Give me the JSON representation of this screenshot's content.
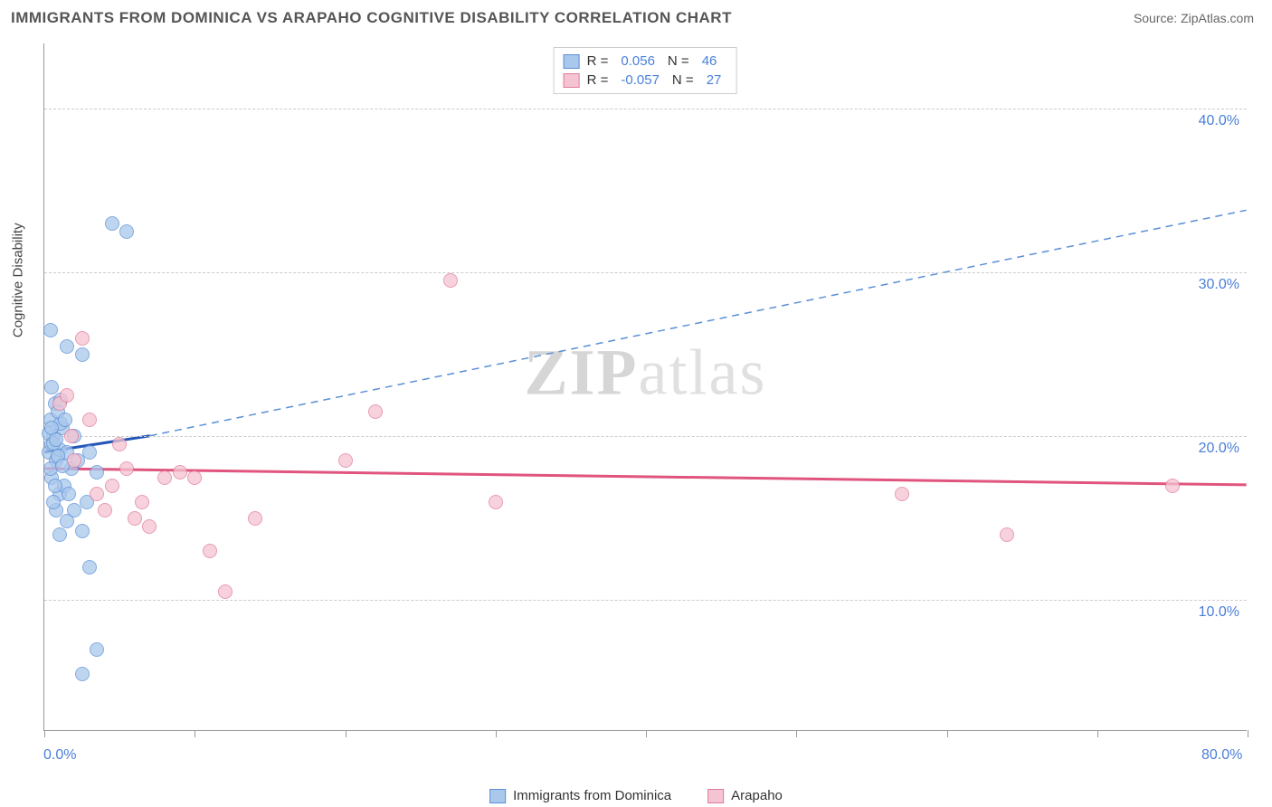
{
  "header": {
    "title": "IMMIGRANTS FROM DOMINICA VS ARAPAHO COGNITIVE DISABILITY CORRELATION CHART",
    "source": "Source: ZipAtlas.com"
  },
  "watermark": {
    "bold": "ZIP",
    "rest": "atlas"
  },
  "chart": {
    "type": "scatter",
    "y_axis_title": "Cognitive Disability",
    "background_color": "#ffffff",
    "grid_color": "#cccccc",
    "axis_color": "#999999",
    "tick_label_color": "#4a7fd8",
    "xlim": [
      0,
      80
    ],
    "ylim": [
      2,
      44
    ],
    "x_ticks": [
      0,
      10,
      20,
      30,
      40,
      50,
      60,
      70,
      80
    ],
    "x_tick_labels": {
      "first": "0.0%",
      "last": "80.0%"
    },
    "y_grid": [
      10,
      20,
      30,
      40
    ],
    "y_tick_labels": [
      "10.0%",
      "20.0%",
      "30.0%",
      "40.0%"
    ],
    "marker_radius": 8,
    "marker_border_width": 1.2,
    "series": [
      {
        "name": "Immigrants from Dominica",
        "fill_color": "#a9c8ec",
        "stroke_color": "#5b8fd6",
        "trend_solid_color": "#2456b8",
        "trend_dash_color": "#5b8fd6",
        "R": "0.056",
        "N": "46",
        "trend": {
          "x1": 0,
          "y1": 19.0,
          "x2": 7,
          "y2": 20.0,
          "x3": 80,
          "y3": 33.8
        },
        "points": [
          [
            0.3,
            19.0
          ],
          [
            0.5,
            19.5
          ],
          [
            0.6,
            20.0
          ],
          [
            0.8,
            18.5
          ],
          [
            1.0,
            19.2
          ],
          [
            1.2,
            20.5
          ],
          [
            0.4,
            21.0
          ],
          [
            0.7,
            22.0
          ],
          [
            1.5,
            19.0
          ],
          [
            1.8,
            18.0
          ],
          [
            0.5,
            17.5
          ],
          [
            1.0,
            16.5
          ],
          [
            0.8,
            15.5
          ],
          [
            0.6,
            16.0
          ],
          [
            1.3,
            17.0
          ],
          [
            0.9,
            18.8
          ],
          [
            1.1,
            20.8
          ],
          [
            0.5,
            23.0
          ],
          [
            1.5,
            25.5
          ],
          [
            2.5,
            25.0
          ],
          [
            0.4,
            26.5
          ],
          [
            2.0,
            20.0
          ],
          [
            3.0,
            19.0
          ],
          [
            3.5,
            17.8
          ],
          [
            2.8,
            16.0
          ],
          [
            2.0,
            15.5
          ],
          [
            1.5,
            14.8
          ],
          [
            1.0,
            14.0
          ],
          [
            2.5,
            14.2
          ],
          [
            4.5,
            33.0
          ],
          [
            5.5,
            32.5
          ],
          [
            3.0,
            12.0
          ],
          [
            3.5,
            7.0
          ],
          [
            2.5,
            5.5
          ],
          [
            0.3,
            20.2
          ],
          [
            0.6,
            19.6
          ],
          [
            0.9,
            21.5
          ],
          [
            1.1,
            22.2
          ],
          [
            0.4,
            18.0
          ],
          [
            0.7,
            17.0
          ],
          [
            1.4,
            21.0
          ],
          [
            2.2,
            18.5
          ],
          [
            0.5,
            20.5
          ],
          [
            0.8,
            19.8
          ],
          [
            1.6,
            16.5
          ],
          [
            1.2,
            18.2
          ]
        ]
      },
      {
        "name": "Arapaho",
        "fill_color": "#f5c4d2",
        "stroke_color": "#e27a9b",
        "trend_solid_color": "#e0547e",
        "R": "-0.057",
        "N": "27",
        "trend": {
          "x1": 0,
          "y1": 18.0,
          "x2": 80,
          "y2": 17.0
        },
        "points": [
          [
            1.0,
            22.0
          ],
          [
            1.5,
            22.5
          ],
          [
            2.5,
            26.0
          ],
          [
            3.0,
            21.0
          ],
          [
            4.0,
            15.5
          ],
          [
            5.0,
            19.5
          ],
          [
            6.0,
            15.0
          ],
          [
            7.0,
            14.5
          ],
          [
            8.0,
            17.5
          ],
          [
            9.0,
            17.8
          ],
          [
            10.0,
            17.5
          ],
          [
            11.0,
            13.0
          ],
          [
            14.0,
            15.0
          ],
          [
            12.0,
            10.5
          ],
          [
            20.0,
            18.5
          ],
          [
            22.0,
            21.5
          ],
          [
            27.0,
            29.5
          ],
          [
            30.0,
            16.0
          ],
          [
            57.0,
            16.5
          ],
          [
            64.0,
            14.0
          ],
          [
            75.0,
            17.0
          ],
          [
            3.5,
            16.5
          ],
          [
            4.5,
            17.0
          ],
          [
            5.5,
            18.0
          ],
          [
            6.5,
            16.0
          ],
          [
            2.0,
            18.5
          ],
          [
            1.8,
            20.0
          ]
        ]
      }
    ],
    "legend_bottom": [
      {
        "label": "Immigrants from Dominica",
        "fill": "#a9c8ec",
        "stroke": "#5b8fd6"
      },
      {
        "label": "Arapaho",
        "fill": "#f5c4d2",
        "stroke": "#e27a9b"
      }
    ]
  }
}
